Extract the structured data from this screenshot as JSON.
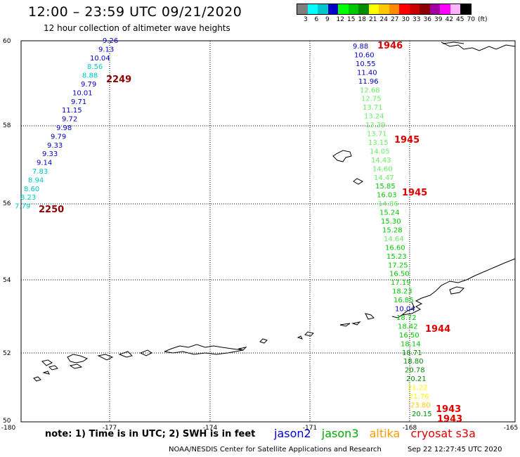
{
  "title": "12:00 – 23:59 UTC 09/21/2020",
  "subtitle": "12 hour collection of altimeter wave heights",
  "scale": {
    "labels": [
      "3",
      "6",
      "9",
      "12",
      "15",
      "18",
      "21",
      "24",
      "27",
      "30",
      "33",
      "36",
      "39",
      "42",
      "45",
      "70",
      "(ft)"
    ],
    "colors": [
      "#7f7f7f",
      "#00ffff",
      "#00c8c8",
      "#0000c8",
      "#00ff00",
      "#00c800",
      "#008c00",
      "#ffff00",
      "#ffc800",
      "#ff8c00",
      "#ff0000",
      "#c80000",
      "#8c0000",
      "#a000a0",
      "#ff00ff",
      "#ffb4ff",
      "#000000"
    ]
  },
  "axes": {
    "lon_labels": [
      "-180",
      "-177",
      "-174",
      "-171",
      "-168",
      "-165"
    ],
    "lat_labels": [
      "60",
      "58",
      "56",
      "54",
      "52",
      "50"
    ]
  },
  "tracks": [
    {
      "values": [
        {
          "v": "9.26",
          "c": "#0000c8"
        },
        {
          "v": "9.13",
          "c": "#0000c8"
        },
        {
          "v": "10.04",
          "c": "#0000c8"
        },
        {
          "v": "8.56",
          "c": "#00c8c8"
        },
        {
          "v": "8.88",
          "c": "#00c8c8"
        },
        {
          "v": "9.79",
          "c": "#0000c8"
        },
        {
          "v": "10.01",
          "c": "#0000c8"
        },
        {
          "v": "9.71",
          "c": "#0000c8"
        },
        {
          "v": "11.15",
          "c": "#0000c8"
        },
        {
          "v": "9.72",
          "c": "#0000c8"
        },
        {
          "v": "9.98",
          "c": "#0000c8"
        },
        {
          "v": "9.79",
          "c": "#0000c8"
        },
        {
          "v": "9.33",
          "c": "#0000c8"
        },
        {
          "v": "9.33",
          "c": "#0000c8"
        },
        {
          "v": "9.14",
          "c": "#0000c8"
        },
        {
          "v": "7.83",
          "c": "#00c8c8"
        },
        {
          "v": "8.94",
          "c": "#00c8c8"
        },
        {
          "v": "8.60",
          "c": "#00c8c8"
        },
        {
          "v": "8.23",
          "c": "#00c8c8"
        },
        {
          "v": "7.79",
          "c": "#00c8c8"
        }
      ]
    },
    {
      "values": [
        {
          "v": "9.88",
          "c": "#0000c8"
        },
        {
          "v": "10.60",
          "c": "#0000c8"
        },
        {
          "v": "10.55",
          "c": "#0000c8"
        },
        {
          "v": "11.40",
          "c": "#0000c8"
        },
        {
          "v": "11.96",
          "c": "#0000c8"
        },
        {
          "v": "12.68",
          "c": "#66ee66"
        },
        {
          "v": "12.75",
          "c": "#66ee66"
        },
        {
          "v": "13.71",
          "c": "#66ee66"
        },
        {
          "v": "13.24",
          "c": "#66ee66"
        },
        {
          "v": "13.39",
          "c": "#66ee66"
        },
        {
          "v": "13.71",
          "c": "#66ee66"
        },
        {
          "v": "13.15",
          "c": "#66ee66"
        },
        {
          "v": "14.05",
          "c": "#66ee66"
        },
        {
          "v": "14.43",
          "c": "#66ee66"
        },
        {
          "v": "14.60",
          "c": "#66ee66"
        },
        {
          "v": "14.47",
          "c": "#66ee66"
        },
        {
          "v": "15.85",
          "c": "#00c800"
        },
        {
          "v": "16.03",
          "c": "#00c800"
        },
        {
          "v": "14.86",
          "c": "#66ee66"
        },
        {
          "v": "15.24",
          "c": "#00c800"
        },
        {
          "v": "15.30",
          "c": "#00c800"
        },
        {
          "v": "15.28",
          "c": "#00c800"
        },
        {
          "v": "14.64",
          "c": "#66ee66"
        },
        {
          "v": "16.60",
          "c": "#00c800"
        },
        {
          "v": "15.23",
          "c": "#00c800"
        },
        {
          "v": "17.25",
          "c": "#00c800"
        },
        {
          "v": "16.50",
          "c": "#00c800"
        },
        {
          "v": "17.19",
          "c": "#00c800"
        },
        {
          "v": "18.23",
          "c": "#00c800"
        },
        {
          "v": "16.85",
          "c": "#00c800"
        },
        {
          "v": "10.04",
          "c": "#0000c8"
        },
        {
          "v": "18.72",
          "c": "#00c800"
        },
        {
          "v": "18.42",
          "c": "#00c800"
        },
        {
          "v": "16.50",
          "c": "#00c800"
        },
        {
          "v": "18.14",
          "c": "#00c800"
        },
        {
          "v": "18.71",
          "c": "#008c00"
        },
        {
          "v": "18.80",
          "c": "#008c00"
        },
        {
          "v": "20.78",
          "c": "#008c00"
        },
        {
          "v": "20.21",
          "c": "#008c00"
        },
        {
          "v": "21.22",
          "c": "#ffff00"
        },
        {
          "v": "21.76",
          "c": "#ffff00"
        },
        {
          "v": "23.80",
          "c": "#ffc800"
        },
        {
          "v": "20.15",
          "c": "#008c00"
        }
      ]
    }
  ],
  "time_labels": [
    {
      "t": "2249",
      "c": "#8c0000"
    },
    {
      "t": "2250",
      "c": "#8c0000"
    },
    {
      "t": "1946",
      "c": "#e00000"
    },
    {
      "t": "1945",
      "c": "#e00000"
    },
    {
      "t": "1945",
      "c": "#e00000"
    },
    {
      "t": "1944",
      "c": "#e00000"
    },
    {
      "t": "1943",
      "c": "#e00000"
    },
    {
      "t": "1943",
      "c": "#e00000"
    }
  ],
  "note": "note:  1) Time is in UTC;  2) SWH is in feet",
  "legend": [
    {
      "name": "jason2",
      "c": "#0000dd"
    },
    {
      "name": "jason3",
      "c": "#00aa00"
    },
    {
      "name": "altika",
      "c": "#ff9900"
    },
    {
      "name": "cryosat s3a",
      "c": "#dd0000"
    }
  ],
  "footer_left": "NOAA/NESDIS Center for Satellite Applications and Research",
  "footer_right": "Sep 22 12:27:45 UTC 2020"
}
